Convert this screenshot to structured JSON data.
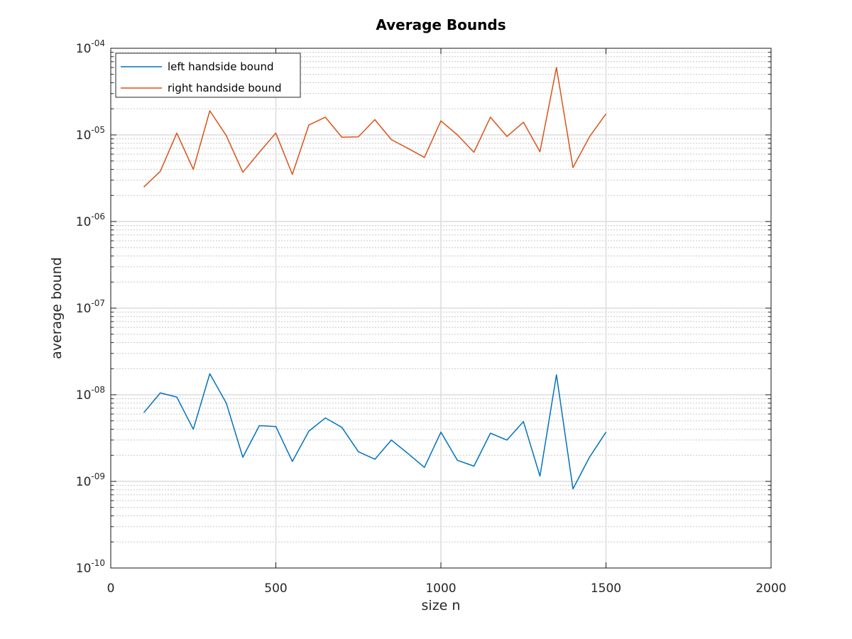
{
  "chart_data": {
    "type": "line",
    "title": "Average Bounds",
    "xlabel": "size n",
    "ylabel": "average bound",
    "xlim": [
      0,
      2000
    ],
    "ylim": [
      1e-10,
      0.0001
    ],
    "yscale": "log",
    "grid": true,
    "legend_position": "top-left",
    "x_ticks": [
      0,
      500,
      1000,
      1500,
      2000
    ],
    "x_tick_labels": [
      "0",
      "500",
      "1000",
      "1500",
      "2000"
    ],
    "y_ticks": [
      {
        "value": 0.0001,
        "base": "10",
        "exp": "-04"
      },
      {
        "value": 1e-05,
        "base": "10",
        "exp": "-05"
      },
      {
        "value": 1e-06,
        "base": "10",
        "exp": "-06"
      },
      {
        "value": 1e-07,
        "base": "10",
        "exp": "-07"
      },
      {
        "value": 1e-08,
        "base": "10",
        "exp": "-08"
      },
      {
        "value": 1e-09,
        "base": "10",
        "exp": "-09"
      },
      {
        "value": 1e-10,
        "base": "10",
        "exp": "-10"
      }
    ],
    "x": [
      100,
      150,
      200,
      250,
      300,
      350,
      400,
      450,
      500,
      550,
      600,
      650,
      700,
      750,
      800,
      850,
      900,
      950,
      1000,
      1050,
      1100,
      1150,
      1200,
      1250,
      1300,
      1350,
      1400,
      1450,
      1500
    ],
    "series": [
      {
        "name": "left handside bound",
        "color": "#0072BD",
        "values": [
          6.2e-09,
          1.05e-08,
          9.4e-09,
          4e-09,
          1.75e-08,
          8e-09,
          1.9e-09,
          4.4e-09,
          4.3e-09,
          1.7e-09,
          3.8e-09,
          5.4e-09,
          4.2e-09,
          2.2e-09,
          1.8e-09,
          3e-09,
          2.1e-09,
          1.45e-09,
          3.7e-09,
          1.75e-09,
          1.5e-09,
          3.6e-09,
          3e-09,
          4.9e-09,
          1.15e-09,
          1.7e-08,
          8.2e-10,
          1.9e-09,
          3.7e-09
        ]
      },
      {
        "name": "right handside bound",
        "color": "#D95319",
        "values": [
          2.5e-06,
          3.8e-06,
          1.05e-05,
          4e-06,
          1.9e-05,
          9.8e-06,
          3.7e-06,
          6.3e-06,
          1.05e-05,
          3.5e-06,
          1.3e-05,
          1.6e-05,
          9.4e-06,
          9.5e-06,
          1.5e-05,
          8.8e-06,
          7e-06,
          5.5e-06,
          1.45e-05,
          1e-05,
          6.3e-06,
          1.6e-05,
          9.6e-06,
          1.4e-05,
          6.4e-06,
          6e-05,
          4.2e-06,
          9.5e-06,
          1.75e-05
        ]
      }
    ]
  }
}
